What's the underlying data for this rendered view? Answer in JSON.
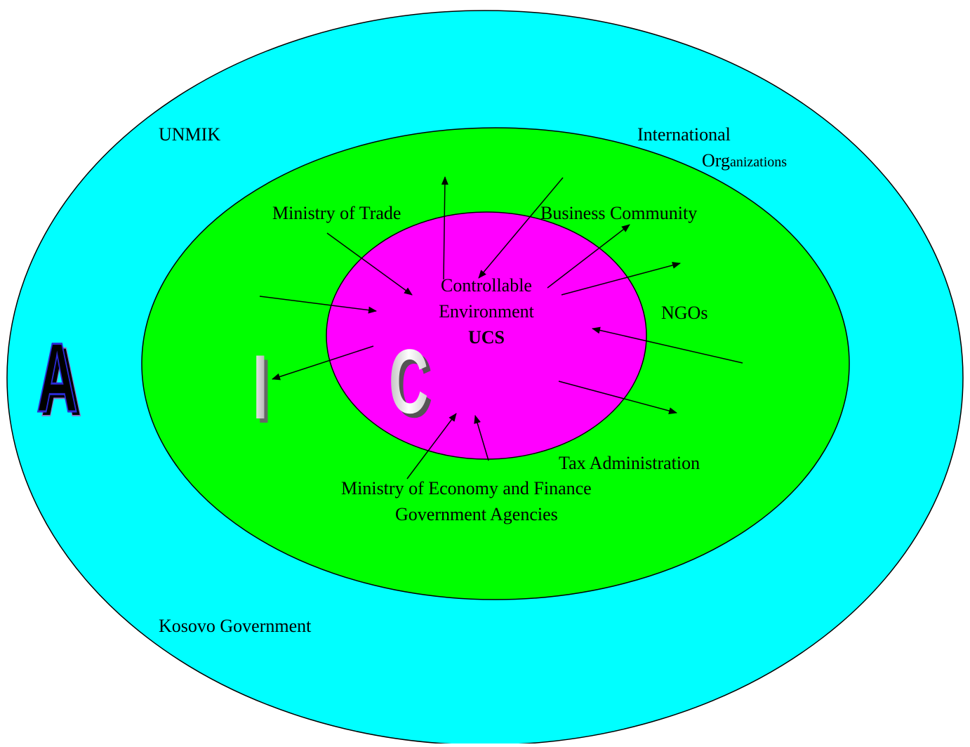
{
  "outer_ring": {
    "label_unmik": "UNMIK",
    "label_international": "International",
    "label_org_caps": "Org",
    "label_org_rest": "anizations",
    "label_kosovo": "Kosovo Government",
    "letter": "A",
    "fill": "#00FFFF"
  },
  "middle_ring": {
    "label_trade": "Ministry of Trade",
    "label_business": "Business Community",
    "label_ngos": "NGOs",
    "label_tax": "Tax Administration",
    "label_mef": "Ministry of Economy and Finance",
    "label_gov_agencies": "Government Agencies",
    "letter": "I",
    "fill": "#00FF00"
  },
  "inner_ring": {
    "label_line1": "Controllable",
    "label_line2": "Environment",
    "label_line3": "UCS",
    "letter": "C",
    "fill": "#FF00FF"
  }
}
